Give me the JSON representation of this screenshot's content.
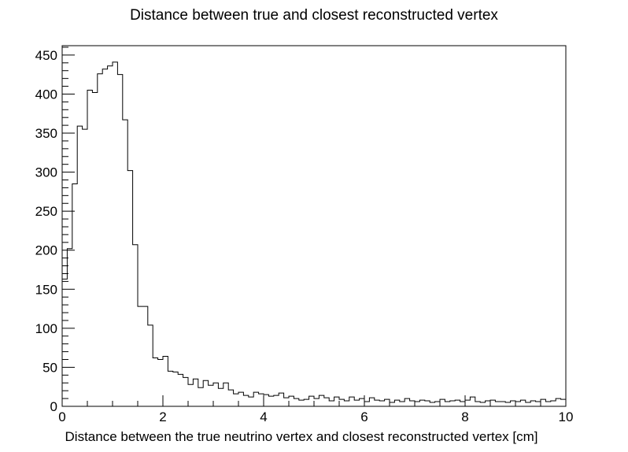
{
  "chart_data": {
    "type": "bar",
    "style": "step-histogram",
    "title": "Distance between true and closest reconstructed vertex",
    "xlabel": "Distance between the true neutrino vertex and closest reconstructed vertex [cm]",
    "ylabel": "",
    "xlim": [
      0,
      10
    ],
    "ylim": [
      0,
      462
    ],
    "bin_width": 0.1,
    "x_ticks": [
      0,
      2,
      4,
      6,
      8,
      10
    ],
    "y_ticks": [
      0,
      50,
      100,
      150,
      200,
      250,
      300,
      350,
      400,
      450
    ],
    "grid": false,
    "legend": "none",
    "line_color": "#000000",
    "values": [
      163,
      202,
      285,
      359,
      355,
      405,
      402,
      426,
      432,
      436,
      441,
      425,
      367,
      302,
      207,
      128,
      128,
      104,
      62,
      60,
      64,
      45,
      44,
      41,
      37,
      28,
      35,
      24,
      33,
      27,
      30,
      23,
      30,
      21,
      16,
      18,
      14,
      12,
      18,
      16,
      15,
      13,
      14,
      17,
      11,
      13,
      10,
      8,
      9,
      13,
      10,
      14,
      11,
      7,
      12,
      9,
      7,
      12,
      8,
      10,
      6,
      11,
      8,
      7,
      9,
      5,
      8,
      6,
      10,
      7,
      6,
      8,
      7,
      5,
      6,
      9,
      6,
      7,
      8,
      6,
      8,
      12,
      6,
      5,
      7,
      8,
      6,
      6,
      5,
      7,
      6,
      8,
      5,
      7,
      6,
      9,
      6,
      7,
      10,
      9
    ]
  }
}
